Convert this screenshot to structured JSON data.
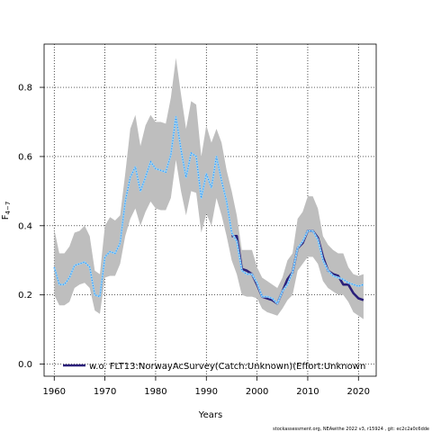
{
  "chart_data": {
    "type": "line",
    "xlabel": "Years",
    "ylabel": "F",
    "ylabel_subscript": "4−7",
    "xlim": [
      1958,
      2023.5
    ],
    "ylim": [
      -0.035,
      0.925
    ],
    "xticks": [
      1960,
      1970,
      1980,
      1990,
      2000,
      2010,
      2020
    ],
    "yticks": [
      0.0,
      0.2,
      0.4,
      0.6,
      0.8
    ],
    "ytick_labels": [
      "0.0",
      "0.2",
      "0.4",
      "0.6",
      "0.8"
    ],
    "grid": true,
    "legend_position": "bottom",
    "colors": {
      "band": "#bebebe",
      "base": "#9fd0ef",
      "base_dots": "#1e90ff",
      "alt": "#2a1f7a",
      "grid": "#000000"
    },
    "x": [
      1960,
      1961,
      1962,
      1963,
      1964,
      1965,
      1966,
      1967,
      1968,
      1969,
      1970,
      1971,
      1972,
      1973,
      1974,
      1975,
      1976,
      1977,
      1978,
      1979,
      1980,
      1981,
      1982,
      1983,
      1984,
      1985,
      1986,
      1987,
      1988,
      1989,
      1990,
      1991,
      1992,
      1993,
      1994,
      1995,
      1996,
      1997,
      1998,
      1999,
      2000,
      2001,
      2002,
      2003,
      2004,
      2005,
      2006,
      2007,
      2008,
      2009,
      2010,
      2011,
      2012,
      2013,
      2014,
      2015,
      2016,
      2017,
      2018,
      2019,
      2020,
      2021
    ],
    "band_upper": [
      0.39,
      0.32,
      0.32,
      0.34,
      0.38,
      0.385,
      0.4,
      0.37,
      0.27,
      0.26,
      0.4,
      0.425,
      0.415,
      0.43,
      0.55,
      0.68,
      0.72,
      0.63,
      0.69,
      0.72,
      0.7,
      0.7,
      0.695,
      0.77,
      0.885,
      0.78,
      0.68,
      0.76,
      0.75,
      0.6,
      0.69,
      0.64,
      0.68,
      0.64,
      0.56,
      0.5,
      0.43,
      0.33,
      0.33,
      0.33,
      0.28,
      0.25,
      0.24,
      0.23,
      0.22,
      0.25,
      0.3,
      0.32,
      0.42,
      0.44,
      0.485,
      0.485,
      0.45,
      0.37,
      0.345,
      0.33,
      0.32,
      0.32,
      0.28,
      0.26,
      0.255,
      0.26
    ],
    "band_lower": [
      0.2,
      0.17,
      0.17,
      0.18,
      0.22,
      0.23,
      0.235,
      0.22,
      0.155,
      0.145,
      0.25,
      0.255,
      0.255,
      0.29,
      0.37,
      0.42,
      0.45,
      0.4,
      0.44,
      0.47,
      0.45,
      0.445,
      0.445,
      0.48,
      0.59,
      0.5,
      0.43,
      0.5,
      0.495,
      0.38,
      0.435,
      0.4,
      0.48,
      0.43,
      0.37,
      0.3,
      0.26,
      0.2,
      0.195,
      0.195,
      0.19,
      0.16,
      0.15,
      0.145,
      0.14,
      0.16,
      0.185,
      0.2,
      0.27,
      0.29,
      0.31,
      0.31,
      0.29,
      0.24,
      0.22,
      0.21,
      0.2,
      0.2,
      0.18,
      0.15,
      0.14,
      0.13
    ],
    "series": [
      {
        "name": "",
        "values": [
          0.28,
          0.23,
          0.23,
          0.25,
          0.285,
          0.29,
          0.295,
          0.28,
          0.2,
          0.195,
          0.31,
          0.325,
          0.32,
          0.35,
          0.47,
          0.54,
          0.57,
          0.5,
          0.54,
          0.585,
          0.565,
          0.56,
          0.555,
          0.605,
          0.715,
          0.62,
          0.54,
          0.61,
          0.6,
          0.48,
          0.55,
          0.51,
          0.6,
          0.53,
          0.47,
          0.38,
          0.355,
          0.27,
          0.26,
          0.26,
          0.235,
          0.195,
          0.195,
          0.19,
          0.175,
          0.21,
          0.23,
          0.265,
          0.335,
          0.355,
          0.385,
          0.385,
          0.36,
          0.3,
          0.27,
          0.255,
          0.25,
          0.245,
          0.235,
          0.23,
          0.225,
          0.23
        ]
      },
      {
        "name": "w.o. FLT13:NorwayAcSurvey(Catch:Unknown)(Effort:Unknown",
        "values": [
          null,
          null,
          null,
          null,
          null,
          null,
          null,
          null,
          null,
          null,
          null,
          null,
          null,
          null,
          null,
          null,
          null,
          null,
          null,
          null,
          null,
          null,
          null,
          null,
          null,
          null,
          null,
          null,
          null,
          null,
          null,
          null,
          null,
          null,
          null,
          0.37,
          0.37,
          0.275,
          0.27,
          0.26,
          0.23,
          0.195,
          0.19,
          0.185,
          0.175,
          0.21,
          0.245,
          0.265,
          0.335,
          0.35,
          0.385,
          0.385,
          0.365,
          0.31,
          0.27,
          0.26,
          0.255,
          0.23,
          0.23,
          0.205,
          0.19,
          0.185
        ]
      }
    ],
    "legend": [
      "w.o. FLT13:NorwayAcSurvey(Catch:Unknown)(Effort:Unknown"
    ]
  },
  "footer": "stockassessment.org, NEAwithe 2022 v3, r15924 , git: ec2c2a0c6dde"
}
